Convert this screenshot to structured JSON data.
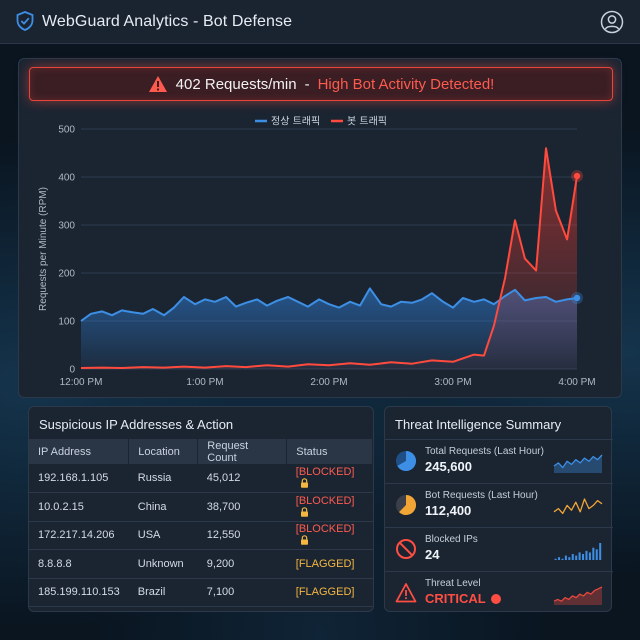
{
  "header": {
    "title": "WebGuard Analytics - Bot Defense"
  },
  "alert": {
    "count": "402 Requests/min",
    "separator": "-",
    "message": "High Bot Activity Detected!"
  },
  "colors": {
    "normal": "#3d8fe6",
    "bot": "#ff4a3d",
    "blocked": "#ff5a4e",
    "flagged": "#f5b740"
  },
  "chart_data": {
    "type": "line",
    "title": "",
    "ylabel": "Requests per Minute (RPM)",
    "xlabel": "",
    "ylim": [
      0,
      500
    ],
    "xlim": [
      0,
      4
    ],
    "y_ticks": [
      "0",
      "100",
      "200",
      "300",
      "400",
      "500"
    ],
    "x_ticks": [
      {
        "x": 0,
        "label": "12:00 PM"
      },
      {
        "x": 1,
        "label": "1:00 PM"
      },
      {
        "x": 2,
        "label": "2:00 PM"
      },
      {
        "x": 3,
        "label": "3:00 PM"
      },
      {
        "x": 4,
        "label": "4:00 PM"
      }
    ],
    "series": [
      {
        "name": "정상 트래픽",
        "x": [
          0.0,
          0.08,
          0.17,
          0.25,
          0.33,
          0.42,
          0.5,
          0.58,
          0.67,
          0.75,
          0.83,
          0.92,
          1.0,
          1.08,
          1.17,
          1.25,
          1.33,
          1.42,
          1.5,
          1.58,
          1.67,
          1.75,
          1.83,
          1.92,
          2.0,
          2.08,
          2.17,
          2.25,
          2.33,
          2.42,
          2.5,
          2.58,
          2.67,
          2.75,
          2.83,
          2.92,
          3.0,
          3.08,
          3.17,
          3.25,
          3.33,
          3.42,
          3.5,
          3.58,
          3.67,
          3.75,
          3.83,
          3.92,
          4.0
        ],
        "values": [
          100,
          115,
          120,
          112,
          122,
          118,
          115,
          125,
          112,
          128,
          150,
          135,
          145,
          140,
          150,
          130,
          138,
          145,
          132,
          142,
          150,
          140,
          130,
          145,
          135,
          128,
          140,
          132,
          168,
          135,
          130,
          140,
          138,
          145,
          158,
          140,
          128,
          148,
          140,
          145,
          135,
          152,
          165,
          143,
          148,
          150,
          140,
          145,
          148
        ],
        "end_marker": true
      },
      {
        "name": "봇 트래픽",
        "x": [
          0.0,
          0.17,
          0.33,
          0.5,
          0.67,
          0.83,
          1.0,
          1.17,
          1.33,
          1.5,
          1.67,
          1.83,
          2.0,
          2.17,
          2.33,
          2.5,
          2.67,
          2.83,
          3.0,
          3.17,
          3.25,
          3.33,
          3.42,
          3.5,
          3.58,
          3.67,
          3.75,
          3.83,
          3.92,
          4.0
        ],
        "values": [
          2,
          3,
          2,
          4,
          3,
          5,
          3,
          6,
          4,
          8,
          5,
          10,
          8,
          12,
          9,
          14,
          11,
          18,
          15,
          30,
          28,
          90,
          190,
          310,
          230,
          205,
          460,
          330,
          270,
          402
        ],
        "end_marker": true
      }
    ]
  },
  "ip_table": {
    "title": "Suspicious IP Addresses & Action",
    "columns": [
      "IP Address",
      "Location",
      "Request Count",
      "Status"
    ],
    "rows": [
      {
        "ip": "192.168.1.105",
        "location": "Russia",
        "count": "45,012",
        "status": "[BLOCKED]",
        "kind": "blocked"
      },
      {
        "ip": "10.0.2.15",
        "location": "China",
        "count": "38,700",
        "status": "[BLOCKED]",
        "kind": "blocked"
      },
      {
        "ip": "172.217.14.206",
        "location": "USA",
        "count": "12,550",
        "status": "[BLOCKED]",
        "kind": "blocked"
      },
      {
        "ip": "8.8.8.8",
        "location": "Unknown",
        "count": "9,200",
        "status": "[FLAGGED]",
        "kind": "flagged"
      },
      {
        "ip": "185.199.110.153",
        "location": "Brazil",
        "count": "7,100",
        "status": "[FLAGGED]",
        "kind": "flagged"
      }
    ]
  },
  "threat": {
    "title": "Threat Intelligence Summary",
    "items": [
      {
        "label": "Total Requests (Last Hour)",
        "value": "245,600",
        "icon": "pie-chart-icon",
        "spark": [
          8,
          10,
          7,
          11,
          9,
          12,
          10,
          13,
          11,
          14,
          12,
          15
        ],
        "spark_type": "area",
        "color": "#3d8fe6"
      },
      {
        "label": "Bot Requests (Last Hour)",
        "value": "112,400",
        "icon": "pie-chart-orange-icon",
        "spark": [
          5,
          7,
          4,
          9,
          6,
          11,
          5,
          13,
          7,
          9,
          12,
          10
        ],
        "spark_type": "line",
        "color": "#f0a534"
      },
      {
        "label": "Blocked IPs",
        "value": "24",
        "icon": "blocked-icon",
        "spark": [
          2,
          3,
          2,
          4,
          3,
          5,
          4,
          6,
          5,
          7,
          6,
          9,
          8,
          12
        ],
        "spark_type": "bar",
        "color": "#3d8fe6"
      },
      {
        "label": "Threat Level",
        "value": "CRITICAL",
        "icon": "warning-icon",
        "spark": [
          4,
          5,
          4,
          6,
          5,
          7,
          6,
          8,
          7,
          9,
          8,
          10,
          11,
          12
        ],
        "spark_type": "area-red",
        "color": "#e4463c"
      }
    ]
  }
}
